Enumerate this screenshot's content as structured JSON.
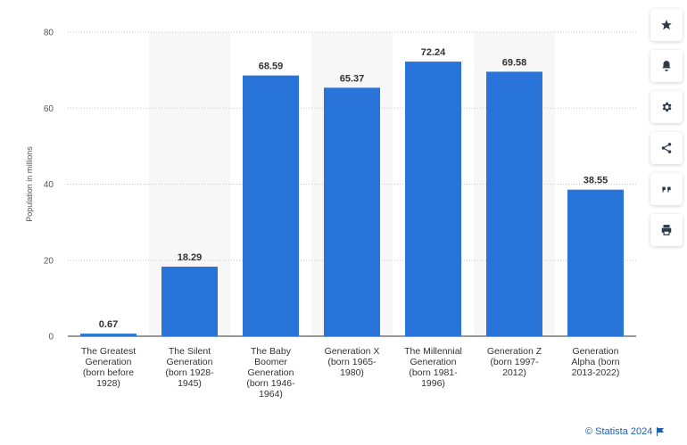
{
  "chart_data": {
    "type": "bar",
    "title": "",
    "xlabel": "",
    "ylabel": "Population in millions",
    "ylim": [
      0,
      80
    ],
    "yticks": [
      0,
      20,
      40,
      60,
      80
    ],
    "grid": true,
    "bar_color": "#2874d9",
    "highlight_band_color": "#f7f7f7",
    "categories": [
      [
        "The Greatest",
        "Generation",
        "(born before",
        "1928)"
      ],
      [
        "The Silent",
        "Generation",
        "(born 1928-",
        "1945)"
      ],
      [
        "The Baby",
        "Boomer",
        "Generation",
        "(born 1946-",
        "1964)"
      ],
      [
        "Generation X",
        "(born 1965-",
        "1980)"
      ],
      [
        "The Millennial",
        "Generation",
        "(born 1981-",
        "1996)"
      ],
      [
        "Generation Z",
        "(born 1997-",
        "2012)"
      ],
      [
        "Generation",
        "Alpha (born",
        "2013-2022)"
      ]
    ],
    "values": [
      0.67,
      18.29,
      68.59,
      65.37,
      72.24,
      69.58,
      38.55
    ],
    "value_labels": [
      "0.67",
      "18.29",
      "68.59",
      "65.37",
      "72.24",
      "69.58",
      "38.55"
    ]
  },
  "toolbar": {
    "items": [
      {
        "name": "favorite",
        "icon": "star-icon"
      },
      {
        "name": "notifications",
        "icon": "bell-icon"
      },
      {
        "name": "settings",
        "icon": "gear-icon"
      },
      {
        "name": "share",
        "icon": "share-icon"
      },
      {
        "name": "cite",
        "icon": "quote-icon"
      },
      {
        "name": "print",
        "icon": "print-icon"
      }
    ]
  },
  "credit": {
    "text": "© Statista 2024"
  }
}
